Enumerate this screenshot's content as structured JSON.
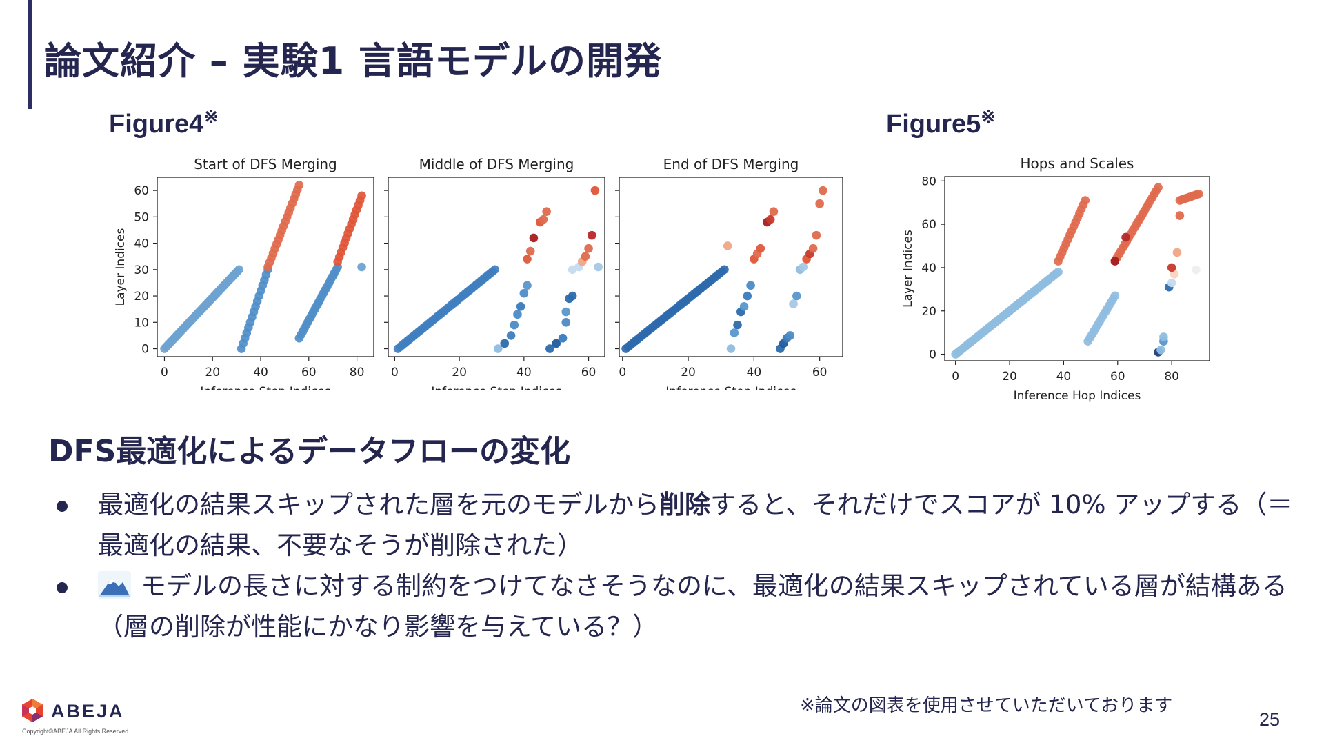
{
  "title": "論文紹介 – 実験1 言語モデルの開発",
  "figure4": {
    "label": "Figure4",
    "mark": "※"
  },
  "figure5": {
    "label": "Figure5",
    "mark": "※"
  },
  "section_heading": "DFS最適化によるデータフローの変化",
  "bullets": [
    {
      "before": "最適化の結果スキップされた層を元のモデルから",
      "bold": "削除",
      "after": "すると、それだけでスコアが 10% アップする（＝最適化の結果、不要なそうが削除された）"
    },
    {
      "icon": "mountain-emoji-icon",
      "text": "モデルの長さに対する制約をつけてなさそうなのに、最適化の結果スキップされている層が結構ある（層の削除が性能にかなり影響を与えている？）"
    }
  ],
  "footnote": "※論文の図表を使用させていただいております",
  "page_number": "25",
  "logo": {
    "name": "ABEJA",
    "copyright": "Copyright©ABEJA All Rights Reserved."
  },
  "chart_data": [
    {
      "type": "scatter",
      "title": "Start of DFS Merging",
      "xlabel": "Inference Step Indices",
      "ylabel": "Layer Indices",
      "xlim": [
        -3,
        87
      ],
      "ylim": [
        -3,
        65
      ],
      "xticks": [
        0,
        20,
        40,
        60,
        80
      ],
      "yticks": [
        0,
        10,
        20,
        30,
        40,
        50,
        60
      ],
      "color_scale": "blue (early) to red (late)",
      "segments": [
        {
          "x": [
            0,
            31
          ],
          "y": [
            0,
            30
          ],
          "color": "#6ea3d0"
        },
        {
          "x": [
            32,
            43
          ],
          "y": [
            0,
            30
          ],
          "color": "#4f8ec8"
        },
        {
          "x": [
            43,
            56
          ],
          "y": [
            31,
            62
          ],
          "color": "#e06a4d"
        },
        {
          "x": [
            56,
            72
          ],
          "y": [
            4,
            31
          ],
          "color": "#4f8ec8"
        },
        {
          "x": [
            72,
            82
          ],
          "y": [
            33,
            58
          ],
          "color": "#e05538"
        }
      ],
      "points": [
        {
          "x": 82,
          "y": 31,
          "color": "#6ea3d0"
        }
      ]
    },
    {
      "type": "scatter",
      "title": "Middle of DFS Merging",
      "xlabel": "Inference Step Indices",
      "ylabel": "",
      "xlim": [
        -2,
        65
      ],
      "ylim": [
        -3,
        65
      ],
      "xticks": [
        0,
        20,
        40,
        60
      ],
      "yticks": [
        0,
        10,
        20,
        30,
        40,
        50,
        60
      ],
      "segments": [
        {
          "x": [
            1,
            31
          ],
          "y": [
            0,
            30
          ],
          "color": "#3f7fc0"
        }
      ],
      "points": [
        {
          "x": 32,
          "y": 0,
          "color": "#8fbde0"
        },
        {
          "x": 34,
          "y": 2,
          "color": "#2c6aad"
        },
        {
          "x": 36,
          "y": 5,
          "color": "#3d7ebf"
        },
        {
          "x": 37,
          "y": 9,
          "color": "#4b8ac6"
        },
        {
          "x": 38,
          "y": 13,
          "color": "#4b8ac6"
        },
        {
          "x": 39,
          "y": 16,
          "color": "#3a7abd"
        },
        {
          "x": 40,
          "y": 21,
          "color": "#4f8ec8"
        },
        {
          "x": 41,
          "y": 24,
          "color": "#5a97cc"
        },
        {
          "x": 41,
          "y": 34,
          "color": "#de5a3c"
        },
        {
          "x": 42,
          "y": 37,
          "color": "#e06a4d"
        },
        {
          "x": 43,
          "y": 42,
          "color": "#a81d20"
        },
        {
          "x": 45,
          "y": 48,
          "color": "#e05538"
        },
        {
          "x": 46,
          "y": 49,
          "color": "#e06a4d"
        },
        {
          "x": 47,
          "y": 52,
          "color": "#e06a4d"
        },
        {
          "x": 48,
          "y": 0,
          "color": "#2c6aad"
        },
        {
          "x": 50,
          "y": 2,
          "color": "#1f5a9e"
        },
        {
          "x": 52,
          "y": 4,
          "color": "#3a7abd"
        },
        {
          "x": 53,
          "y": 10,
          "color": "#4b8ac6"
        },
        {
          "x": 53,
          "y": 14,
          "color": "#5a97cc"
        },
        {
          "x": 54,
          "y": 19,
          "color": "#2c6aad"
        },
        {
          "x": 55,
          "y": 20,
          "color": "#2c6aad"
        },
        {
          "x": 55,
          "y": 30,
          "color": "#c6dbef"
        },
        {
          "x": 57,
          "y": 31,
          "color": "#c6dbef"
        },
        {
          "x": 58,
          "y": 33,
          "color": "#f1a587"
        },
        {
          "x": 59,
          "y": 35,
          "color": "#e06a4d"
        },
        {
          "x": 60,
          "y": 38,
          "color": "#e06a4d"
        },
        {
          "x": 61,
          "y": 43,
          "color": "#b7282a"
        },
        {
          "x": 62,
          "y": 60,
          "color": "#e05538"
        },
        {
          "x": 63,
          "y": 31,
          "color": "#a5c7e4"
        }
      ]
    },
    {
      "type": "scatter",
      "title": "End of DFS Merging",
      "xlabel": "Inference Step Indices",
      "ylabel": "",
      "xlim": [
        -1,
        67
      ],
      "ylim": [
        -3,
        65
      ],
      "xticks": [
        0,
        20,
        40,
        60
      ],
      "yticks": [
        0,
        10,
        20,
        30,
        40,
        50,
        60
      ],
      "segments": [
        {
          "x": [
            1,
            31
          ],
          "y": [
            0,
            30
          ],
          "color": "#2c6aad"
        }
      ],
      "points": [
        {
          "x": 32,
          "y": 39,
          "color": "#f1a587"
        },
        {
          "x": 33,
          "y": 0,
          "color": "#8fbde0"
        },
        {
          "x": 34,
          "y": 6,
          "color": "#5a97cc"
        },
        {
          "x": 35,
          "y": 9,
          "color": "#2c6aad"
        },
        {
          "x": 36,
          "y": 14,
          "color": "#2c6aad"
        },
        {
          "x": 37,
          "y": 16,
          "color": "#5a97cc"
        },
        {
          "x": 38,
          "y": 20,
          "color": "#3a7abd"
        },
        {
          "x": 39,
          "y": 24,
          "color": "#4b8ac6"
        },
        {
          "x": 40,
          "y": 34,
          "color": "#e05538"
        },
        {
          "x": 41,
          "y": 36,
          "color": "#e06a4d"
        },
        {
          "x": 42,
          "y": 38,
          "color": "#de5a3c"
        },
        {
          "x": 44,
          "y": 48,
          "color": "#a81d20"
        },
        {
          "x": 45,
          "y": 49,
          "color": "#c63a2c"
        },
        {
          "x": 46,
          "y": 52,
          "color": "#e06a4d"
        },
        {
          "x": 48,
          "y": 0,
          "color": "#2c6aad"
        },
        {
          "x": 49,
          "y": 2,
          "color": "#1f5a9e"
        },
        {
          "x": 50,
          "y": 4,
          "color": "#3a7abd"
        },
        {
          "x": 51,
          "y": 5,
          "color": "#4b8ac6"
        },
        {
          "x": 52,
          "y": 17,
          "color": "#a5c7e4"
        },
        {
          "x": 53,
          "y": 20,
          "color": "#5a97cc"
        },
        {
          "x": 54,
          "y": 30,
          "color": "#8fbde0"
        },
        {
          "x": 55,
          "y": 31,
          "color": "#a5c7e4"
        },
        {
          "x": 56,
          "y": 34,
          "color": "#e05538"
        },
        {
          "x": 57,
          "y": 36,
          "color": "#c63a2c"
        },
        {
          "x": 58,
          "y": 38,
          "color": "#e06a4d"
        },
        {
          "x": 59,
          "y": 43,
          "color": "#e06a4d"
        },
        {
          "x": 60,
          "y": 55,
          "color": "#e06a4d"
        },
        {
          "x": 61,
          "y": 60,
          "color": "#e06a4d"
        }
      ]
    },
    {
      "type": "scatter",
      "title": "Hops and Scales",
      "xlabel": "Inference Hop Indices",
      "ylabel": "Layer Indices",
      "xlim": [
        -4,
        94
      ],
      "ylim": [
        -3,
        82
      ],
      "xticks": [
        0,
        20,
        40,
        60,
        80
      ],
      "yticks": [
        0,
        20,
        40,
        60,
        80
      ],
      "segments": [
        {
          "x": [
            0,
            38
          ],
          "y": [
            0,
            38
          ],
          "color": "#8fbde0"
        },
        {
          "x": [
            38,
            48
          ],
          "y": [
            43,
            71
          ],
          "color": "#e06a4d"
        },
        {
          "x": [
            49,
            59
          ],
          "y": [
            6,
            27
          ],
          "color": "#8fbde0"
        },
        {
          "x": [
            59,
            75
          ],
          "y": [
            43,
            77
          ],
          "color": "#e06a4d"
        },
        {
          "x": [
            83,
            90
          ],
          "y": [
            71,
            74
          ],
          "color": "#e06a4d"
        }
      ],
      "points": [
        {
          "x": 59,
          "y": 43,
          "color": "#a81d20"
        },
        {
          "x": 63,
          "y": 54,
          "color": "#b7282a"
        },
        {
          "x": 75,
          "y": 1,
          "color": "#1f3f77"
        },
        {
          "x": 76,
          "y": 2,
          "color": "#8fbde0"
        },
        {
          "x": 77,
          "y": 6,
          "color": "#5a97cc"
        },
        {
          "x": 77,
          "y": 8,
          "color": "#8fbde0"
        },
        {
          "x": 79,
          "y": 31,
          "color": "#2c6aad"
        },
        {
          "x": 80,
          "y": 33,
          "color": "#c6dbef"
        },
        {
          "x": 81,
          "y": 37,
          "color": "#fbd3c0"
        },
        {
          "x": 82,
          "y": 47,
          "color": "#f1a587"
        },
        {
          "x": 83,
          "y": 64,
          "color": "#e06a4d"
        },
        {
          "x": 80,
          "y": 40,
          "color": "#c63a2c"
        },
        {
          "x": 89,
          "y": 39,
          "color": "#eeeeee"
        }
      ]
    }
  ]
}
